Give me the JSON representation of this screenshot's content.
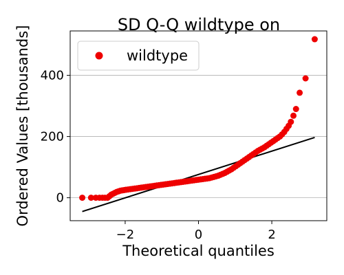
{
  "chart_data": {
    "type": "scatter",
    "title": "SD Q-Q wildtype on",
    "xlabel": "Theoretical quantiles",
    "ylabel": "Ordered Values [thousands]",
    "xlim": [
      -3.5,
      3.5
    ],
    "ylim": [
      -75,
      545
    ],
    "x_ticks": [
      -2,
      0,
      2
    ],
    "x_tick_labels": [
      "−2",
      "0",
      "2"
    ],
    "y_ticks": [
      0,
      200,
      400
    ],
    "y_tick_labels": [
      "0",
      "200",
      "400"
    ],
    "grid": "horizontal",
    "legend_position": "top-left",
    "series": [
      {
        "name": "wildtype",
        "color": "#ee0000",
        "marker": "circle",
        "points": [
          [
            -3.17,
            0
          ],
          [
            -2.93,
            0
          ],
          [
            -2.8,
            0
          ],
          [
            -2.7,
            0
          ],
          [
            -2.62,
            0
          ],
          [
            -2.55,
            0
          ],
          [
            -2.48,
            0
          ],
          [
            -2.43,
            5
          ],
          [
            -2.38,
            10
          ],
          [
            -2.33,
            13
          ],
          [
            -2.28,
            16
          ],
          [
            -2.23,
            19
          ],
          [
            -2.18,
            21
          ],
          [
            -2.13,
            23
          ],
          [
            -2.08,
            24
          ],
          [
            -2.03,
            25
          ],
          [
            -1.98,
            26
          ],
          [
            -1.92,
            27
          ],
          [
            -1.86,
            28
          ],
          [
            -1.8,
            29
          ],
          [
            -1.74,
            30
          ],
          [
            -1.68,
            31
          ],
          [
            -1.62,
            32
          ],
          [
            -1.56,
            33
          ],
          [
            -1.5,
            34
          ],
          [
            -1.44,
            35
          ],
          [
            -1.38,
            36
          ],
          [
            -1.32,
            37
          ],
          [
            -1.26,
            38
          ],
          [
            -1.2,
            39
          ],
          [
            -1.14,
            40
          ],
          [
            -1.08,
            41
          ],
          [
            -1.02,
            42
          ],
          [
            -0.96,
            43
          ],
          [
            -0.9,
            44
          ],
          [
            -0.84,
            45
          ],
          [
            -0.78,
            46
          ],
          [
            -0.72,
            47
          ],
          [
            -0.66,
            48
          ],
          [
            -0.6,
            49
          ],
          [
            -0.54,
            50
          ],
          [
            -0.48,
            51
          ],
          [
            -0.42,
            52
          ],
          [
            -0.36,
            53
          ],
          [
            -0.3,
            54
          ],
          [
            -0.24,
            55
          ],
          [
            -0.18,
            56
          ],
          [
            -0.12,
            57
          ],
          [
            -0.06,
            58
          ],
          [
            0.0,
            59
          ],
          [
            0.06,
            60
          ],
          [
            0.12,
            61
          ],
          [
            0.18,
            62
          ],
          [
            0.24,
            63
          ],
          [
            0.3,
            64
          ],
          [
            0.36,
            66
          ],
          [
            0.42,
            68
          ],
          [
            0.48,
            70
          ],
          [
            0.54,
            72
          ],
          [
            0.6,
            75
          ],
          [
            0.66,
            78
          ],
          [
            0.72,
            81
          ],
          [
            0.78,
            85
          ],
          [
            0.84,
            89
          ],
          [
            0.9,
            93
          ],
          [
            0.96,
            98
          ],
          [
            1.02,
            103
          ],
          [
            1.08,
            108
          ],
          [
            1.14,
            113
          ],
          [
            1.2,
            118
          ],
          [
            1.26,
            123
          ],
          [
            1.32,
            128
          ],
          [
            1.38,
            133
          ],
          [
            1.44,
            138
          ],
          [
            1.5,
            143
          ],
          [
            1.56,
            148
          ],
          [
            1.62,
            153
          ],
          [
            1.68,
            157
          ],
          [
            1.74,
            161
          ],
          [
            1.8,
            165
          ],
          [
            1.86,
            170
          ],
          [
            1.92,
            175
          ],
          [
            1.98,
            180
          ],
          [
            2.04,
            185
          ],
          [
            2.1,
            190
          ],
          [
            2.16,
            195
          ],
          [
            2.22,
            200
          ],
          [
            2.28,
            207
          ],
          [
            2.34,
            215
          ],
          [
            2.4,
            225
          ],
          [
            2.46,
            235
          ],
          [
            2.52,
            248
          ],
          [
            2.59,
            268
          ],
          [
            2.66,
            290
          ],
          [
            2.76,
            343
          ],
          [
            2.92,
            390
          ],
          [
            3.17,
            518
          ]
        ]
      }
    ],
    "reference_line": {
      "x": [
        -3.17,
        3.17
      ],
      "y": [
        -45,
        197
      ],
      "color": "#000000"
    }
  }
}
